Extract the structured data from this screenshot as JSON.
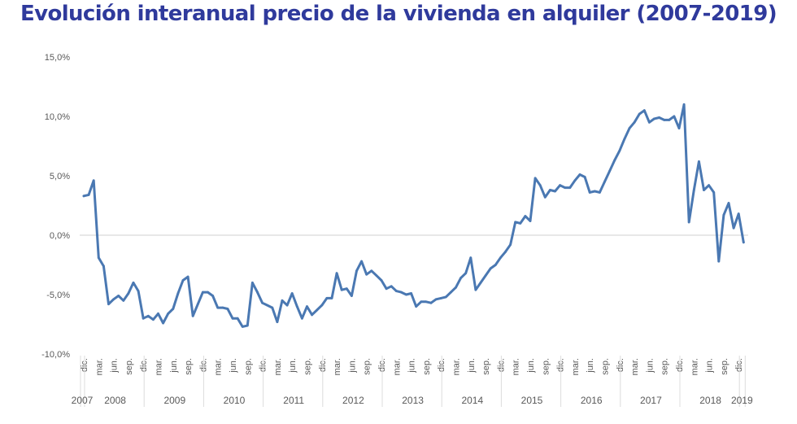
{
  "chart_data": {
    "type": "line",
    "title": "Evolución interanual precio de la vivienda en alquiler (2007-2019)",
    "xlabel": "",
    "ylabel": "",
    "ylim": [
      -10,
      15
    ],
    "y_ticks": [
      "-10,0%",
      "-5,0%",
      "0,0%",
      "5,0%",
      "10,0%",
      "15,0%"
    ],
    "y_tick_values": [
      -10,
      -5,
      0,
      5,
      10,
      15
    ],
    "grid": "zero line only",
    "legend": "none",
    "line_color": "#4a78b2",
    "title_color": "#2f3a9c",
    "month_tick_labels": [
      "mar.",
      "jun.",
      "sep.",
      "dic."
    ],
    "first_tick_label": "dic.",
    "years": [
      "2007",
      "2008",
      "2009",
      "2010",
      "2011",
      "2012",
      "2013",
      "2014",
      "2015",
      "2016",
      "2017",
      "2018",
      "2019"
    ],
    "x": [
      "2007-12",
      "2008-01",
      "2008-02",
      "2008-03",
      "2008-04",
      "2008-05",
      "2008-06",
      "2008-07",
      "2008-08",
      "2008-09",
      "2008-10",
      "2008-11",
      "2008-12",
      "2009-01",
      "2009-02",
      "2009-03",
      "2009-04",
      "2009-05",
      "2009-06",
      "2009-07",
      "2009-08",
      "2009-09",
      "2009-10",
      "2009-11",
      "2009-12",
      "2010-01",
      "2010-02",
      "2010-03",
      "2010-04",
      "2010-05",
      "2010-06",
      "2010-07",
      "2010-08",
      "2010-09",
      "2010-10",
      "2010-11",
      "2010-12",
      "2011-01",
      "2011-02",
      "2011-03",
      "2011-04",
      "2011-05",
      "2011-06",
      "2011-07",
      "2011-08",
      "2011-09",
      "2011-10",
      "2011-11",
      "2011-12",
      "2012-01",
      "2012-02",
      "2012-03",
      "2012-04",
      "2012-05",
      "2012-06",
      "2012-07",
      "2012-08",
      "2012-09",
      "2012-10",
      "2012-11",
      "2012-12",
      "2013-01",
      "2013-02",
      "2013-03",
      "2013-04",
      "2013-05",
      "2013-06",
      "2013-07",
      "2013-08",
      "2013-09",
      "2013-10",
      "2013-11",
      "2013-12",
      "2014-01",
      "2014-02",
      "2014-03",
      "2014-04",
      "2014-05",
      "2014-06",
      "2014-07",
      "2014-08",
      "2014-09",
      "2014-10",
      "2014-11",
      "2014-12",
      "2015-01",
      "2015-02",
      "2015-03",
      "2015-04",
      "2015-05",
      "2015-06",
      "2015-07",
      "2015-08",
      "2015-09",
      "2015-10",
      "2015-11",
      "2015-12",
      "2016-01",
      "2016-02",
      "2016-03",
      "2016-04",
      "2016-05",
      "2016-06",
      "2016-07",
      "2016-08",
      "2016-09",
      "2016-10",
      "2016-11",
      "2016-12",
      "2017-01",
      "2017-02",
      "2017-03",
      "2017-04",
      "2017-05",
      "2017-06",
      "2017-07",
      "2017-08",
      "2017-09",
      "2017-10",
      "2017-11",
      "2017-12",
      "2018-01",
      "2018-02",
      "2018-03",
      "2018-04",
      "2018-05",
      "2018-06",
      "2018-07",
      "2018-08",
      "2018-09",
      "2018-10",
      "2018-11",
      "2018-12",
      "2019-01"
    ],
    "values": [
      3.3,
      3.4,
      4.6,
      -1.9,
      -2.6,
      -5.8,
      -5.4,
      -5.1,
      -5.5,
      -4.9,
      -4.0,
      -4.7,
      -7.0,
      -6.8,
      -7.1,
      -6.6,
      -7.4,
      -6.6,
      -6.2,
      -4.9,
      -3.8,
      -3.5,
      -6.8,
      -5.8,
      -4.8,
      -4.8,
      -5.1,
      -6.1,
      -6.1,
      -6.2,
      -7.0,
      -7.0,
      -7.7,
      -7.6,
      -4.0,
      -4.8,
      -5.7,
      -5.9,
      -6.1,
      -7.3,
      -5.5,
      -5.9,
      -4.9,
      -6.0,
      -7.0,
      -6.0,
      -6.7,
      -6.3,
      -5.9,
      -5.3,
      -5.3,
      -3.2,
      -4.6,
      -4.5,
      -5.1,
      -3.0,
      -2.2,
      -3.3,
      -3.0,
      -3.4,
      -3.8,
      -4.5,
      -4.3,
      -4.7,
      -4.8,
      -5.0,
      -4.9,
      -6.0,
      -5.6,
      -5.6,
      -5.7,
      -5.4,
      -5.3,
      -5.2,
      -4.8,
      -4.4,
      -3.6,
      -3.2,
      -1.9,
      -4.6,
      -4.0,
      -3.4,
      -2.8,
      -2.5,
      -1.9,
      -1.4,
      -0.8,
      1.1,
      1.0,
      1.6,
      1.2,
      4.8,
      4.2,
      3.2,
      3.8,
      3.7,
      4.2,
      4.0,
      4.0,
      4.6,
      5.1,
      4.9,
      3.6,
      3.7,
      3.6,
      4.5,
      5.4,
      6.3,
      7.1,
      8.1,
      9.0,
      9.5,
      10.2,
      10.5,
      9.5,
      9.8,
      9.9,
      9.7,
      9.7,
      10.0,
      9.0,
      11.0,
      1.1,
      3.8,
      6.2,
      3.8,
      4.2,
      3.6,
      -2.2,
      1.7,
      2.7,
      0.6,
      1.8,
      -0.6
    ]
  }
}
